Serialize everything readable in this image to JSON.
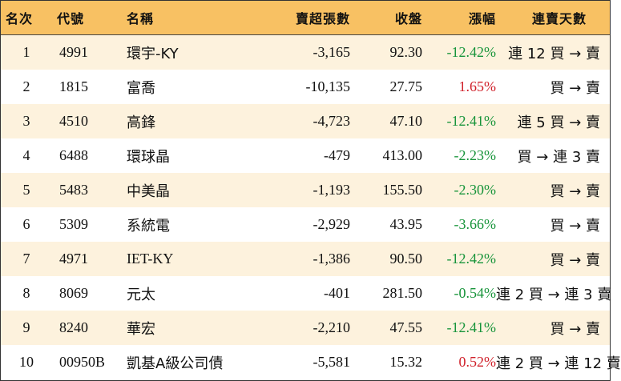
{
  "headers": {
    "rank": "名次",
    "code": "代號",
    "name": "名稱",
    "sell": "賣超張數",
    "close": "收盤",
    "change": "漲幅",
    "streak": "連賣天數"
  },
  "colors": {
    "header_bg": "#f8c163",
    "odd_row_bg": "#fdf2dd",
    "negative_change": "#17943a",
    "positive_change": "#d0202a"
  },
  "rows": [
    {
      "rank": "1",
      "code": "4991",
      "name": "環宇-KY",
      "sell": "-3,165",
      "close": "92.30",
      "change": "-12.42%",
      "direction": "down",
      "streak": "連 12 買 → 賣"
    },
    {
      "rank": "2",
      "code": "1815",
      "name": "富喬",
      "sell": "-10,135",
      "close": "27.75",
      "change": "1.65%",
      "direction": "up",
      "streak": "買 → 賣"
    },
    {
      "rank": "3",
      "code": "4510",
      "name": "高鋒",
      "sell": "-4,723",
      "close": "47.10",
      "change": "-12.41%",
      "direction": "down",
      "streak": "連 5 買 → 賣"
    },
    {
      "rank": "4",
      "code": "6488",
      "name": "環球晶",
      "sell": "-479",
      "close": "413.00",
      "change": "-2.23%",
      "direction": "down",
      "streak": "買 → 連 3 賣"
    },
    {
      "rank": "5",
      "code": "5483",
      "name": "中美晶",
      "sell": "-1,193",
      "close": "155.50",
      "change": "-2.30%",
      "direction": "down",
      "streak": "買 → 賣"
    },
    {
      "rank": "6",
      "code": "5309",
      "name": "系統電",
      "sell": "-2,929",
      "close": "43.95",
      "change": "-3.66%",
      "direction": "down",
      "streak": "買 → 賣"
    },
    {
      "rank": "7",
      "code": "4971",
      "name": "IET-KY",
      "sell": "-1,386",
      "close": "90.50",
      "change": "-12.42%",
      "direction": "down",
      "streak": "買 → 賣"
    },
    {
      "rank": "8",
      "code": "8069",
      "name": "元太",
      "sell": "-401",
      "close": "281.50",
      "change": "-0.54%",
      "direction": "down",
      "streak": "連 2 買 → 連 3 賣"
    },
    {
      "rank": "9",
      "code": "8240",
      "name": "華宏",
      "sell": "-2,210",
      "close": "47.55",
      "change": "-12.41%",
      "direction": "down",
      "streak": "買 → 賣"
    },
    {
      "rank": "10",
      "code": "00950B",
      "name": "凱基A級公司債",
      "sell": "-5,581",
      "close": "15.32",
      "change": "0.52%",
      "direction": "up",
      "streak": "連 2 買 → 連 12 賣"
    }
  ]
}
